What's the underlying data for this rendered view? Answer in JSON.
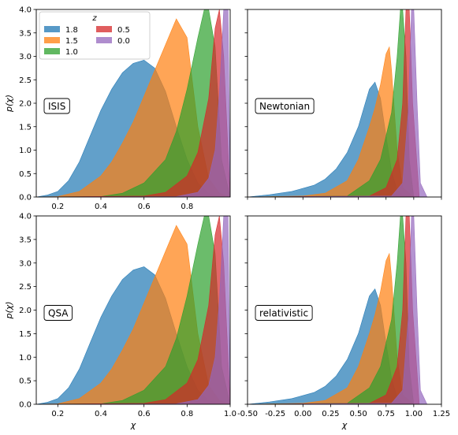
{
  "chart_data": [
    {
      "type": "area",
      "panel": "ISIS",
      "label": "ISIS",
      "xlabel": "χ",
      "ylabel": "p(χ)",
      "xlim": [
        0.1,
        1.0
      ],
      "ylim": [
        0,
        4.0
      ],
      "xticks": [
        0.2,
        0.4,
        0.6,
        0.8
      ],
      "yticks": [
        0.0,
        0.5,
        1.0,
        1.5,
        2.0,
        2.5,
        3.0,
        3.5,
        4.0
      ],
      "series": [
        {
          "name": "1.8",
          "color": "#1f77b4",
          "x": [
            0.1,
            0.15,
            0.2,
            0.25,
            0.3,
            0.35,
            0.4,
            0.45,
            0.5,
            0.55,
            0.6,
            0.65,
            0.7,
            0.75,
            0.8,
            0.85,
            0.9,
            0.95,
            1.0
          ],
          "y": [
            0.0,
            0.04,
            0.12,
            0.35,
            0.75,
            1.3,
            1.85,
            2.3,
            2.65,
            2.85,
            2.92,
            2.75,
            2.25,
            1.5,
            0.8,
            0.3,
            0.08,
            0.02,
            0.0
          ]
        },
        {
          "name": "1.5",
          "color": "#ff7f0e",
          "x": [
            0.1,
            0.2,
            0.3,
            0.4,
            0.45,
            0.5,
            0.55,
            0.6,
            0.65,
            0.7,
            0.75,
            0.8,
            0.85,
            0.9,
            0.95,
            1.0
          ],
          "y": [
            0.0,
            0.01,
            0.12,
            0.45,
            0.75,
            1.15,
            1.6,
            2.15,
            2.7,
            3.25,
            3.8,
            3.4,
            1.5,
            0.4,
            0.08,
            0.0
          ]
        },
        {
          "name": "1.0",
          "color": "#2ca02c",
          "x": [
            0.1,
            0.4,
            0.5,
            0.6,
            0.7,
            0.75,
            0.8,
            0.85,
            0.88,
            0.9,
            0.93,
            0.96,
            1.0
          ],
          "y": [
            0.0,
            0.01,
            0.08,
            0.3,
            0.8,
            1.4,
            2.3,
            3.4,
            4.0,
            4.0,
            3.2,
            0.8,
            0.0
          ]
        },
        {
          "name": "0.5",
          "color": "#d62728",
          "x": [
            0.1,
            0.6,
            0.7,
            0.8,
            0.85,
            0.9,
            0.93,
            0.95,
            0.97,
            1.0
          ],
          "y": [
            0.0,
            0.02,
            0.1,
            0.45,
            0.95,
            2.1,
            3.6,
            4.0,
            3.0,
            0.0
          ]
        },
        {
          "name": "0.0",
          "color": "#9467bd",
          "x": [
            0.1,
            0.75,
            0.85,
            0.9,
            0.93,
            0.95,
            0.97,
            0.99,
            1.0
          ],
          "y": [
            0.0,
            0.01,
            0.1,
            0.4,
            1.0,
            2.2,
            4.0,
            4.0,
            0.0
          ]
        }
      ]
    },
    {
      "type": "area",
      "panel": "Newtonian",
      "label": "Newtonian",
      "xlabel": "χ",
      "ylabel": "",
      "xlim": [
        -0.5,
        1.25
      ],
      "ylim": [
        0,
        4.0
      ],
      "xticks": [],
      "yticks": [],
      "series": [
        {
          "name": "1.8",
          "color": "#1f77b4",
          "x": [
            -0.5,
            -0.3,
            -0.1,
            0.1,
            0.2,
            0.3,
            0.4,
            0.5,
            0.55,
            0.6,
            0.65,
            0.7,
            0.75,
            0.8,
            0.85,
            0.9,
            1.0
          ],
          "y": [
            0.0,
            0.05,
            0.12,
            0.25,
            0.38,
            0.6,
            0.95,
            1.5,
            1.9,
            2.3,
            2.45,
            2.1,
            1.3,
            0.55,
            0.15,
            0.03,
            0.0
          ]
        },
        {
          "name": "1.5",
          "color": "#ff7f0e",
          "x": [
            -0.5,
            0.0,
            0.2,
            0.4,
            0.5,
            0.6,
            0.65,
            0.7,
            0.75,
            0.78,
            0.8,
            0.85,
            0.9,
            1.0
          ],
          "y": [
            0.0,
            0.02,
            0.08,
            0.35,
            0.8,
            1.5,
            1.9,
            2.4,
            3.05,
            3.2,
            2.7,
            1.0,
            0.2,
            0.0
          ]
        },
        {
          "name": "1.0",
          "color": "#2ca02c",
          "x": [
            -0.5,
            0.4,
            0.6,
            0.7,
            0.8,
            0.85,
            0.88,
            0.9,
            0.93,
            0.96,
            1.0
          ],
          "y": [
            0.0,
            0.02,
            0.35,
            0.8,
            1.8,
            3.0,
            4.0,
            4.0,
            3.0,
            0.8,
            0.0
          ]
        },
        {
          "name": "0.5",
          "color": "#d62728",
          "x": [
            -0.5,
            0.6,
            0.75,
            0.85,
            0.9,
            0.93,
            0.96,
            0.99,
            1.05
          ],
          "y": [
            0.0,
            0.02,
            0.2,
            0.8,
            2.0,
            4.0,
            4.0,
            2.0,
            0.0
          ]
        },
        {
          "name": "0.0",
          "color": "#9467bd",
          "x": [
            -0.5,
            0.8,
            0.9,
            0.95,
            0.98,
            1.0,
            1.03,
            1.06,
            1.12
          ],
          "y": [
            0.0,
            0.02,
            0.3,
            1.8,
            4.0,
            4.0,
            2.0,
            0.3,
            0.0
          ]
        }
      ]
    },
    {
      "type": "area",
      "panel": "QSA",
      "label": "QSA",
      "xlabel": "χ",
      "ylabel": "p(χ)",
      "xlim": [
        0.1,
        1.0
      ],
      "ylim": [
        0,
        4.0
      ],
      "xticks": [
        0.2,
        0.4,
        0.6,
        0.8,
        1.0
      ],
      "yticks": [
        0.0,
        0.5,
        1.0,
        1.5,
        2.0,
        2.5,
        3.0,
        3.5,
        4.0
      ],
      "series": [
        {
          "name": "1.8",
          "color": "#1f77b4",
          "x": [
            0.1,
            0.15,
            0.2,
            0.25,
            0.3,
            0.35,
            0.4,
            0.45,
            0.5,
            0.55,
            0.6,
            0.65,
            0.7,
            0.75,
            0.8,
            0.85,
            0.9,
            0.95,
            1.0
          ],
          "y": [
            0.0,
            0.04,
            0.12,
            0.35,
            0.75,
            1.3,
            1.85,
            2.3,
            2.65,
            2.85,
            2.92,
            2.75,
            2.25,
            1.5,
            0.8,
            0.3,
            0.08,
            0.02,
            0.0
          ]
        },
        {
          "name": "1.5",
          "color": "#ff7f0e",
          "x": [
            0.1,
            0.2,
            0.3,
            0.4,
            0.45,
            0.5,
            0.55,
            0.6,
            0.65,
            0.7,
            0.75,
            0.8,
            0.85,
            0.9,
            0.95,
            1.0
          ],
          "y": [
            0.0,
            0.01,
            0.12,
            0.45,
            0.75,
            1.15,
            1.6,
            2.15,
            2.7,
            3.25,
            3.8,
            3.4,
            1.5,
            0.4,
            0.08,
            0.0
          ]
        },
        {
          "name": "1.0",
          "color": "#2ca02c",
          "x": [
            0.1,
            0.4,
            0.5,
            0.6,
            0.7,
            0.75,
            0.8,
            0.85,
            0.88,
            0.9,
            0.93,
            0.96,
            1.0
          ],
          "y": [
            0.0,
            0.01,
            0.08,
            0.3,
            0.8,
            1.4,
            2.3,
            3.4,
            4.0,
            4.0,
            3.2,
            0.8,
            0.0
          ]
        },
        {
          "name": "0.5",
          "color": "#d62728",
          "x": [
            0.1,
            0.6,
            0.7,
            0.8,
            0.85,
            0.9,
            0.93,
            0.95,
            0.97,
            1.0
          ],
          "y": [
            0.0,
            0.02,
            0.1,
            0.45,
            0.95,
            2.1,
            3.6,
            4.0,
            3.0,
            0.0
          ]
        },
        {
          "name": "0.0",
          "color": "#9467bd",
          "x": [
            0.1,
            0.75,
            0.85,
            0.9,
            0.93,
            0.95,
            0.97,
            0.99,
            1.0
          ],
          "y": [
            0.0,
            0.01,
            0.1,
            0.4,
            1.0,
            2.2,
            4.0,
            4.0,
            0.0
          ]
        }
      ]
    },
    {
      "type": "area",
      "panel": "relativistic",
      "label": "relativistic",
      "xlabel": "χ",
      "ylabel": "",
      "xlim": [
        -0.5,
        1.25
      ],
      "ylim": [
        0,
        4.0
      ],
      "xticks": [
        -0.5,
        -0.25,
        0.0,
        0.25,
        0.5,
        0.75,
        1.0,
        1.25
      ],
      "yticks": [],
      "series": [
        {
          "name": "1.8",
          "color": "#1f77b4",
          "x": [
            -0.5,
            -0.3,
            -0.1,
            0.1,
            0.2,
            0.3,
            0.4,
            0.5,
            0.55,
            0.6,
            0.65,
            0.7,
            0.75,
            0.8,
            0.85,
            0.9,
            1.0
          ],
          "y": [
            0.0,
            0.05,
            0.12,
            0.25,
            0.38,
            0.6,
            0.95,
            1.5,
            1.9,
            2.3,
            2.45,
            2.1,
            1.3,
            0.55,
            0.15,
            0.03,
            0.0
          ]
        },
        {
          "name": "1.5",
          "color": "#ff7f0e",
          "x": [
            -0.5,
            0.0,
            0.2,
            0.4,
            0.5,
            0.6,
            0.65,
            0.7,
            0.75,
            0.78,
            0.8,
            0.85,
            0.9,
            1.0
          ],
          "y": [
            0.0,
            0.02,
            0.08,
            0.35,
            0.8,
            1.5,
            1.9,
            2.4,
            3.05,
            3.2,
            2.7,
            1.0,
            0.2,
            0.0
          ]
        },
        {
          "name": "1.0",
          "color": "#2ca02c",
          "x": [
            -0.5,
            0.4,
            0.6,
            0.7,
            0.8,
            0.85,
            0.88,
            0.9,
            0.93,
            0.96,
            1.0
          ],
          "y": [
            0.0,
            0.02,
            0.35,
            0.8,
            1.8,
            3.0,
            4.0,
            4.0,
            3.0,
            0.8,
            0.0
          ]
        },
        {
          "name": "0.5",
          "color": "#d62728",
          "x": [
            -0.5,
            0.6,
            0.75,
            0.85,
            0.9,
            0.93,
            0.96,
            0.99,
            1.05
          ],
          "y": [
            0.0,
            0.02,
            0.2,
            0.8,
            2.0,
            4.0,
            4.0,
            2.0,
            0.0
          ]
        },
        {
          "name": "0.0",
          "color": "#9467bd",
          "x": [
            -0.5,
            0.8,
            0.9,
            0.95,
            0.98,
            1.0,
            1.03,
            1.06,
            1.12
          ],
          "y": [
            0.0,
            0.02,
            0.3,
            1.8,
            4.0,
            4.0,
            2.0,
            0.3,
            0.0
          ]
        }
      ]
    }
  ],
  "legend": {
    "title": "z",
    "placement": "top-left of ISIS panel",
    "entries": [
      {
        "label": "1.8",
        "color": "#1f77b4"
      },
      {
        "label": "1.5",
        "color": "#ff7f0e"
      },
      {
        "label": "1.0",
        "color": "#2ca02c"
      },
      {
        "label": "0.5",
        "color": "#d62728"
      },
      {
        "label": "0.0",
        "color": "#9467bd"
      }
    ]
  },
  "style": {
    "fill_opacity": 0.7
  }
}
